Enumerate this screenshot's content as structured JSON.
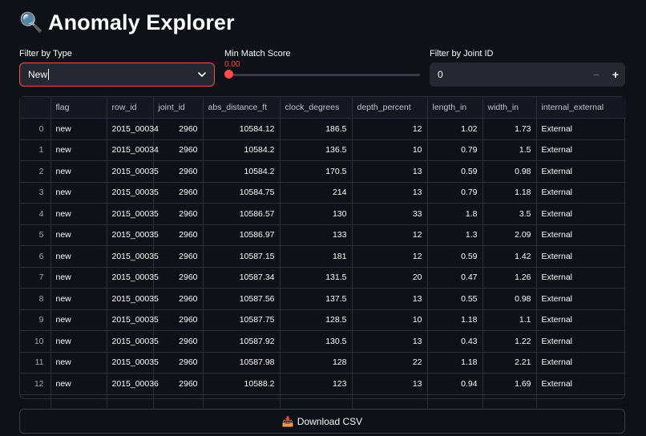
{
  "header": {
    "title": "Anomaly Explorer",
    "icon": "magnifier-icon"
  },
  "filter_type": {
    "label": "Filter by Type",
    "value": "New"
  },
  "slider": {
    "label": "Min Match Score",
    "value_text": "0.00",
    "value": 0.0
  },
  "joint_filter": {
    "label": "Filter by Joint ID",
    "value": "0",
    "minus": "−",
    "plus": "+"
  },
  "table": {
    "columns": [
      "",
      "flag",
      "row_id",
      "joint_id",
      "abs_distance_ft",
      "clock_degrees",
      "depth_percent",
      "length_in",
      "width_in",
      "internal_external"
    ],
    "rows": [
      [
        "0",
        "new",
        "2015_00034",
        "2960",
        "10584.12",
        "186.5",
        "12",
        "1.02",
        "1.73",
        "External"
      ],
      [
        "1",
        "new",
        "2015_00034",
        "2960",
        "10584.2",
        "136.5",
        "10",
        "0.79",
        "1.5",
        "External"
      ],
      [
        "2",
        "new",
        "2015_00035",
        "2960",
        "10584.2",
        "170.5",
        "13",
        "0.59",
        "0.98",
        "External"
      ],
      [
        "3",
        "new",
        "2015_00035",
        "2960",
        "10584.75",
        "214",
        "13",
        "0.79",
        "1.18",
        "External"
      ],
      [
        "4",
        "new",
        "2015_00035",
        "2960",
        "10586.57",
        "130",
        "33",
        "1.8",
        "3.5",
        "External"
      ],
      [
        "5",
        "new",
        "2015_00035",
        "2960",
        "10586.97",
        "133",
        "12",
        "1.3",
        "2.09",
        "External"
      ],
      [
        "6",
        "new",
        "2015_00035",
        "2960",
        "10587.15",
        "181",
        "12",
        "0.59",
        "1.42",
        "External"
      ],
      [
        "7",
        "new",
        "2015_00035",
        "2960",
        "10587.34",
        "131.5",
        "20",
        "0.47",
        "1.26",
        "External"
      ],
      [
        "8",
        "new",
        "2015_00035",
        "2960",
        "10587.56",
        "137.5",
        "13",
        "0.55",
        "0.98",
        "External"
      ],
      [
        "9",
        "new",
        "2015_00035",
        "2960",
        "10587.75",
        "128.5",
        "10",
        "1.18",
        "1.1",
        "External"
      ],
      [
        "10",
        "new",
        "2015_00035",
        "2960",
        "10587.92",
        "130.5",
        "13",
        "0.43",
        "1.22",
        "External"
      ],
      [
        "11",
        "new",
        "2015_00035",
        "2960",
        "10587.98",
        "128",
        "22",
        "1.18",
        "2.21",
        "External"
      ],
      [
        "12",
        "new",
        "2015_00036",
        "2960",
        "10588.2",
        "123",
        "13",
        "0.94",
        "1.69",
        "External"
      ],
      [
        "",
        "",
        "",
        "",
        "",
        "",
        "",
        "",
        "",
        ""
      ]
    ]
  },
  "download": {
    "label": "Download CSV",
    "icon": "inbox-tray-icon"
  },
  "colors": {
    "accent": "#ff4b4b",
    "background": "#0e1117",
    "input_bg": "#262730"
  }
}
